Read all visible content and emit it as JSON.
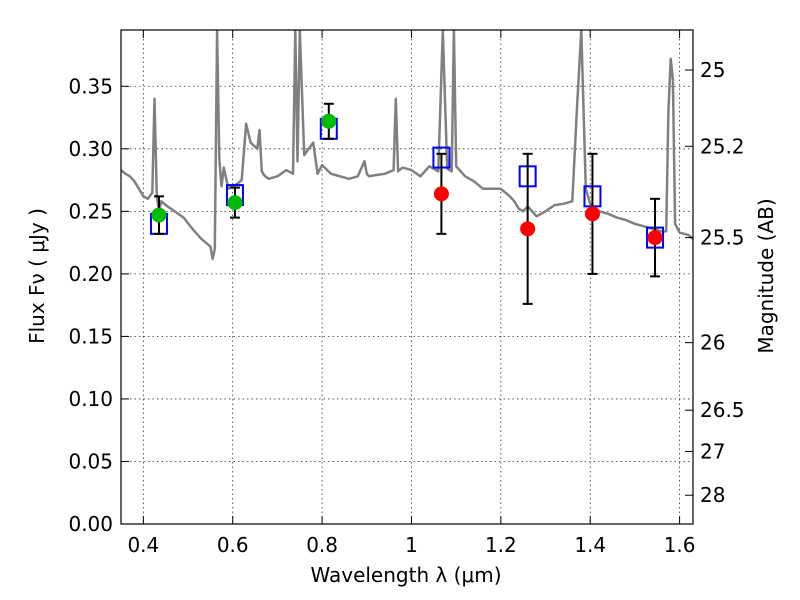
{
  "chart_data": {
    "type": "scatter",
    "xlabel": "Wavelength  λ (μm)",
    "ylabel": "Flux  Fν  ( μJy )",
    "ylabel_right": "Magnitude (AB)",
    "xlim": [
      0.35,
      1.63
    ],
    "ylim": [
      0.0,
      0.395
    ],
    "grid": true,
    "x_ticks": [
      0.4,
      0.6,
      0.8,
      1.0,
      1.2,
      1.4,
      1.6
    ],
    "x_tick_labels": [
      "0.4",
      "0.6",
      "0.8",
      "1",
      "1.2",
      "1.4",
      "1.6"
    ],
    "y_ticks": [
      0.0,
      0.05,
      0.1,
      0.15,
      0.2,
      0.25,
      0.3,
      0.35
    ],
    "y_tick_labels": [
      "0.00",
      "0.05",
      "0.10",
      "0.15",
      "0.20",
      "0.25",
      "0.30",
      "0.35"
    ],
    "right_ticks": [
      {
        "label": "25",
        "flux": 0.363
      },
      {
        "label": "25.2",
        "flux": 0.302
      },
      {
        "label": "25.5",
        "flux": 0.229
      },
      {
        "label": "26",
        "flux": 0.145
      },
      {
        "label": "26.5",
        "flux": 0.091
      },
      {
        "label": "27",
        "flux": 0.058
      },
      {
        "label": "28",
        "flux": 0.023
      }
    ],
    "series": [
      {
        "style": "line",
        "color": "#808080",
        "x": [
          0.35,
          0.36,
          0.37,
          0.38,
          0.39,
          0.4,
          0.41,
          0.42,
          0.425,
          0.43,
          0.435,
          0.44,
          0.45,
          0.47,
          0.49,
          0.51,
          0.53,
          0.55,
          0.555,
          0.56,
          0.565,
          0.57,
          0.575,
          0.58,
          0.59,
          0.6,
          0.61,
          0.62,
          0.63,
          0.64,
          0.655,
          0.66,
          0.665,
          0.67,
          0.68,
          0.7,
          0.72,
          0.735,
          0.74,
          0.745,
          0.75,
          0.76,
          0.77,
          0.78,
          0.79,
          0.8,
          0.82,
          0.84,
          0.86,
          0.88,
          0.895,
          0.9,
          0.905,
          0.92,
          0.94,
          0.96,
          0.965,
          0.97,
          0.98,
          1.0,
          1.02,
          1.04,
          1.06,
          1.07,
          1.08,
          1.09,
          1.095,
          1.1,
          1.12,
          1.14,
          1.16,
          1.18,
          1.2,
          1.22,
          1.23,
          1.24,
          1.25,
          1.26,
          1.27,
          1.28,
          1.3,
          1.32,
          1.34,
          1.36,
          1.37,
          1.38,
          1.39,
          1.4,
          1.42,
          1.44,
          1.46,
          1.48,
          1.5,
          1.52,
          1.54,
          1.56,
          1.57,
          1.575,
          1.58,
          1.585,
          1.59,
          1.6,
          1.62,
          1.63
        ],
        "y": [
          0.283,
          0.28,
          0.278,
          0.274,
          0.268,
          0.262,
          0.26,
          0.265,
          0.34,
          0.262,
          0.25,
          0.258,
          0.255,
          0.25,
          0.245,
          0.236,
          0.228,
          0.222,
          0.212,
          0.22,
          0.395,
          0.292,
          0.27,
          0.285,
          0.268,
          0.27,
          0.272,
          0.275,
          0.32,
          0.305,
          0.3,
          0.315,
          0.282,
          0.279,
          0.276,
          0.278,
          0.283,
          0.28,
          0.395,
          0.29,
          0.395,
          0.295,
          0.3,
          0.305,
          0.28,
          0.287,
          0.28,
          0.278,
          0.276,
          0.278,
          0.29,
          0.28,
          0.278,
          0.279,
          0.28,
          0.283,
          0.34,
          0.282,
          0.285,
          0.283,
          0.278,
          0.286,
          0.282,
          0.395,
          0.284,
          0.282,
          0.395,
          0.286,
          0.278,
          0.274,
          0.268,
          0.268,
          0.268,
          0.262,
          0.258,
          0.252,
          0.25,
          0.254,
          0.25,
          0.246,
          0.25,
          0.255,
          0.256,
          0.258,
          0.33,
          0.395,
          0.268,
          0.256,
          0.25,
          0.248,
          0.245,
          0.243,
          0.24,
          0.238,
          0.236,
          0.234,
          0.234,
          0.33,
          0.372,
          0.355,
          0.24,
          0.233,
          0.231,
          0.228
        ]
      },
      {
        "style": "open-square",
        "color": "#0000ff",
        "x": [
          0.435,
          0.605,
          0.815,
          1.067,
          1.26,
          1.405,
          1.545
        ],
        "y": [
          0.24,
          0.263,
          0.316,
          0.293,
          0.278,
          0.262,
          0.229
        ]
      },
      {
        "style": "filled-circle",
        "color": "#00bb00",
        "x": [
          0.435,
          0.605,
          0.815
        ],
        "y": [
          0.247,
          0.257,
          0.322
        ],
        "err": [
          0.015,
          0.012,
          0.014
        ]
      },
      {
        "style": "filled-circle",
        "color": "#ff0000",
        "x": [
          1.067,
          1.26,
          1.405,
          1.545
        ],
        "y": [
          0.264,
          0.236,
          0.248,
          0.229
        ],
        "err": [
          0.032,
          0.06,
          0.048,
          0.031
        ]
      }
    ]
  }
}
